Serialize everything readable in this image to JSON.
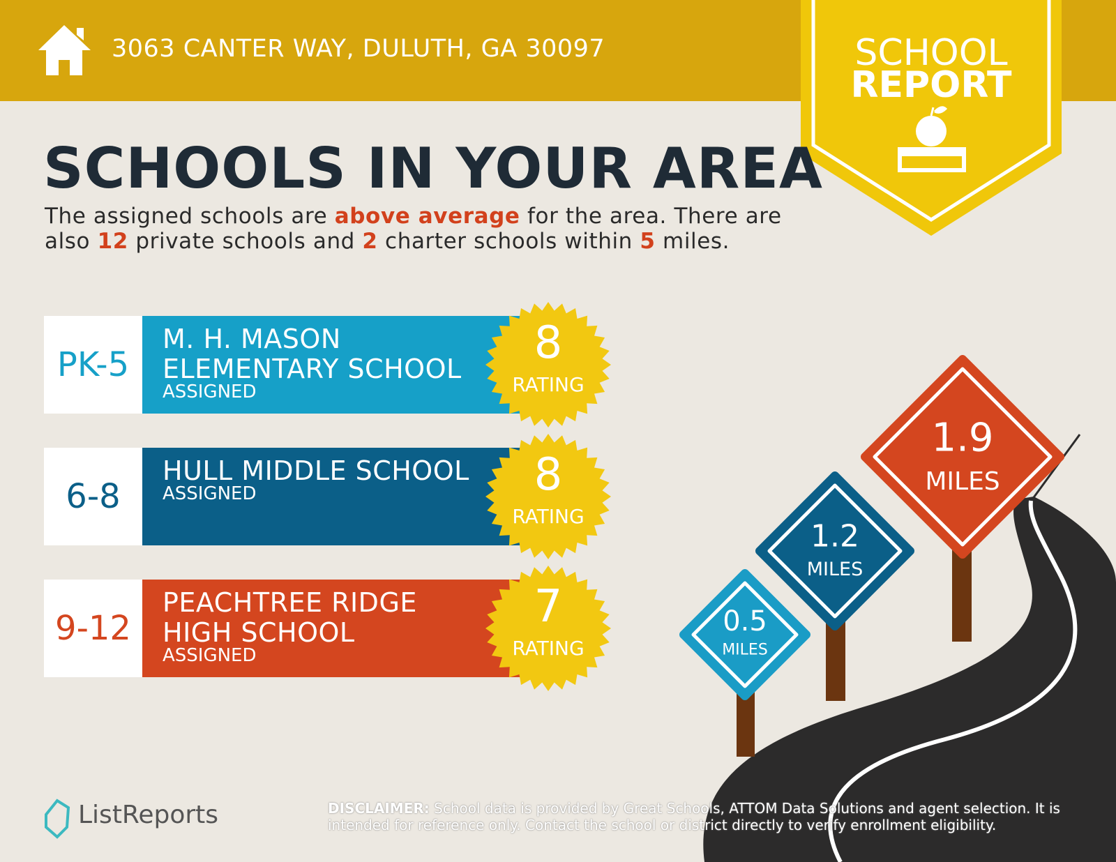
{
  "header": {
    "address": "3063 CANTER WAY, DULUTH, GA 30097"
  },
  "badge": {
    "line1": "SCHOOL",
    "line2": "REPORT"
  },
  "title": "SCHOOLS IN YOUR AREA",
  "intro": [
    "The assigned schools are ",
    "above average",
    " for the area. There are also ",
    "12",
    " private schools and ",
    "2",
    " charter schools within ",
    "5",
    " miles."
  ],
  "schools": [
    {
      "grades": "PK-5",
      "name": "M. H. MASON ELEMENTARY SCHOOL",
      "status": "ASSIGNED",
      "rating": "8",
      "rating_label": "RATING"
    },
    {
      "grades": "6-8",
      "name": "HULL MIDDLE SCHOOL",
      "status": "ASSIGNED",
      "rating": "8",
      "rating_label": "RATING"
    },
    {
      "grades": "9-12",
      "name": "PEACHTREE RIDGE HIGH SCHOOL",
      "status": "ASSIGNED",
      "rating": "7",
      "rating_label": "RATING"
    }
  ],
  "signs": [
    {
      "distance": "0.5",
      "unit": "MILES"
    },
    {
      "distance": "1.2",
      "unit": "MILES"
    },
    {
      "distance": "1.9",
      "unit": "MILES"
    }
  ],
  "footer": {
    "brand": "ListReports",
    "disclaimer_label": "DISCLAIMER:",
    "disclaimer": " School data is provided by Great Schools, ATTOM Data Solutions and agent selection. It is intended for reference only. Contact the school or district directly to verify enrollment eligibility."
  }
}
